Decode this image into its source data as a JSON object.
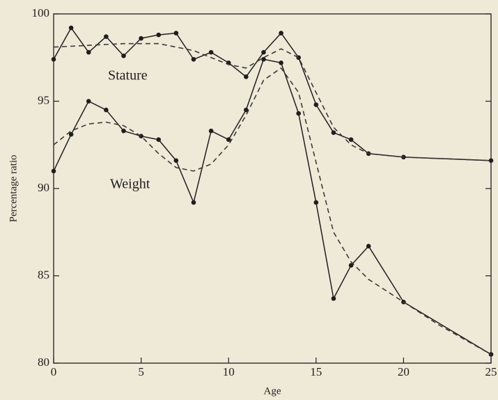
{
  "chart_data": {
    "type": "line",
    "xlabel": "Age",
    "ylabel": "Percentage ratio",
    "xlim": [
      0,
      25
    ],
    "xticks": [
      0,
      5,
      10,
      15,
      20,
      25
    ],
    "ylim": [
      80,
      100
    ],
    "yticks": [
      80,
      85,
      90,
      95,
      100
    ],
    "series": [
      {
        "name": "Stature",
        "color": "#1e1e1e",
        "markers": true,
        "x": [
          0,
          1,
          2,
          3,
          4,
          5,
          6,
          7,
          8,
          9,
          10,
          11,
          12,
          13,
          14,
          15,
          16,
          17,
          18,
          20,
          25
        ],
        "values": [
          97.4,
          99.2,
          97.8,
          98.7,
          97.6,
          98.6,
          98.8,
          98.9,
          97.4,
          97.8,
          97.2,
          96.4,
          97.8,
          98.9,
          97.5,
          94.8,
          93.2,
          92.8,
          92.0,
          91.8,
          91.6
        ]
      },
      {
        "name": "Weight",
        "color": "#1e1e1e",
        "markers": true,
        "x": [
          0,
          1,
          2,
          3,
          4,
          5,
          6,
          7,
          8,
          9,
          10,
          11,
          12,
          13,
          14,
          15,
          16,
          17,
          18,
          20,
          25
        ],
        "values": [
          91.0,
          93.1,
          95.0,
          94.5,
          93.3,
          93.0,
          92.8,
          91.6,
          89.2,
          93.3,
          92.8,
          94.5,
          97.4,
          97.2,
          94.3,
          89.2,
          83.7,
          85.6,
          86.7,
          83.5,
          80.5
        ]
      },
      {
        "color": "#3a3a3a",
        "dashed": true,
        "x": [
          0,
          2,
          4,
          6,
          8,
          10,
          11,
          12,
          13,
          14,
          15,
          16,
          17,
          18,
          20,
          25
        ],
        "values": [
          98.1,
          98.2,
          98.3,
          98.3,
          97.9,
          97.1,
          96.9,
          97.5,
          98.0,
          97.5,
          95.5,
          93.5,
          92.5,
          92.0,
          91.8,
          91.6
        ]
      },
      {
        "color": "#3a3a3a",
        "dashed": true,
        "x": [
          0,
          1,
          2,
          3,
          4,
          5,
          6,
          7,
          8,
          9,
          10,
          11,
          12,
          13,
          14,
          15,
          16,
          17,
          18,
          20,
          22,
          25
        ],
        "values": [
          92.5,
          93.3,
          93.7,
          93.8,
          93.6,
          93.0,
          92.0,
          91.2,
          91.0,
          91.4,
          92.5,
          94.2,
          96.2,
          96.9,
          95.5,
          91.5,
          87.5,
          85.8,
          84.8,
          83.5,
          82.2,
          80.5
        ]
      }
    ]
  }
}
